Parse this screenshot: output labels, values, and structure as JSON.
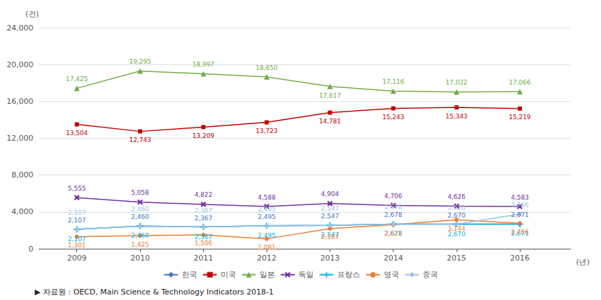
{
  "chart_data": {
    "type": "line",
    "x": [
      2009,
      2010,
      2011,
      2012,
      2013,
      2014,
      2015,
      2016
    ],
    "xlim": [
      2008.4,
      2016.8
    ],
    "xticks": [
      2009,
      2010,
      2011,
      2012,
      2013,
      2014,
      2015,
      2016
    ],
    "ylim": [
      0,
      24000
    ],
    "yticks": [
      0,
      {
        "value": 4000,
        "label": "4,000"
      },
      {
        "value": 8000,
        "label": "8,000"
      },
      {
        "value": 12000,
        "label": "12,000"
      },
      {
        "value": 16000,
        "label": "16,000"
      },
      {
        "value": 20000,
        "label": "20,000"
      },
      {
        "value": 24000,
        "label": "24,000"
      }
    ],
    "ylabel": "(건)",
    "xlabel": "(년)",
    "annotations": [
      "▶ 자료원 : OECD, Main Science & Technology Indicators 2018-1"
    ],
    "grid": true,
    "legend": "bottom",
    "data_labels": true,
    "series": [
      {
        "name": "한국",
        "color": "#4472C4",
        "marker": "diamond",
        "values": [
          2107,
          2460,
          2367,
          2495,
          2547,
          2678,
          2670,
          2671
        ],
        "value_labels": [
          "2,107",
          "2,460",
          "2,367",
          "2,495",
          "2,547",
          "2,678",
          "2,670",
          "2,671"
        ]
      },
      {
        "name": "미국",
        "color": "#C00000",
        "marker": "square",
        "values": [
          13504,
          12743,
          13209,
          13723,
          14781,
          15243,
          15343,
          15219
        ],
        "value_labels": [
          "13,504",
          "12,743",
          "13,209",
          "13,723",
          "14,781",
          "15,243",
          "15,343",
          "15,219"
        ]
      },
      {
        "name": "일본",
        "color": "#70AD47",
        "marker": "triangle",
        "values": [
          17425,
          19295,
          18997,
          18650,
          17617,
          17116,
          17022,
          17066
        ],
        "value_labels": [
          "17,425",
          "19,295",
          "18,997",
          "18,650",
          "17,617",
          "17,116",
          "17,022",
          "17,066"
        ]
      },
      {
        "name": "독일",
        "color": "#7030A0",
        "marker": "x",
        "values": [
          5555,
          5058,
          4822,
          4588,
          4904,
          4706,
          4626,
          4583
        ],
        "value_labels": [
          "5,555",
          "5,058",
          "4,822",
          "4,588",
          "4,904",
          "4,706",
          "4,626",
          "4,583"
        ]
      },
      {
        "name": "프랑스",
        "color": "#00B0F0",
        "marker": "plus",
        "values": [
          2107,
          2460,
          2367,
          2495,
          2547,
          2678,
          2670,
          2671
        ],
        "value_labels": [
          "2,107",
          "2,460",
          "2,367",
          "2,495",
          "2,547",
          "2,678",
          "2,670",
          "2,671"
        ]
      },
      {
        "name": "영국",
        "color": "#ED7D31",
        "marker": "circle",
        "values": [
          1301,
          1425,
          1506,
          1081,
          2187,
          2621,
          3144,
          2766
        ],
        "value_labels": [
          "1,301",
          "1,425",
          "1,506",
          "1,081",
          "2,187",
          "2,621",
          "3,144",
          "2,766"
        ]
      },
      {
        "name": "중국",
        "color": "#9DC3E6",
        "marker": "diamond",
        "values": [
          2107,
          2460,
          2367,
          2495,
          2547,
          2678,
          2670,
          3766
        ],
        "value_labels": [
          "2,107",
          "2,460",
          "2,367",
          "2,495",
          "2,547",
          "2,678",
          "2,670",
          "3,766"
        ]
      }
    ]
  }
}
